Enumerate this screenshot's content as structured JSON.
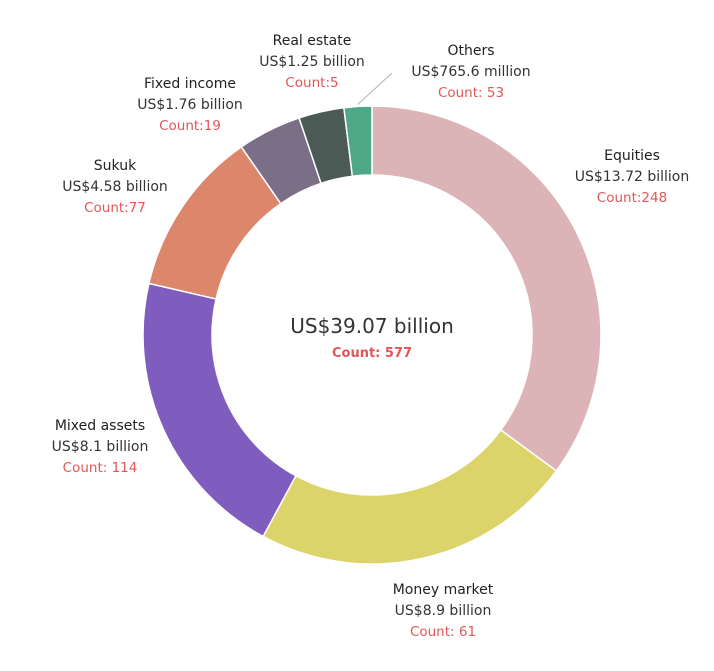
{
  "chart_data": {
    "type": "pie",
    "donut": true,
    "center": {
      "total": "US$39.07 billion",
      "count": "Count: 577"
    },
    "slices": [
      {
        "name": "Equities",
        "value": 13.72,
        "value_label": "US$13.72 billion",
        "count_label": "Count:248",
        "color": "#dcb4b8"
      },
      {
        "name": "Money market",
        "value": 8.9,
        "value_label": "US$8.9 billion",
        "count_label": "Count: 61",
        "color": "#dcd46b"
      },
      {
        "name": "Mixed assets",
        "value": 8.1,
        "value_label": "US$8.1 billion",
        "count_label": "Count: 114",
        "color": "#7f5dbe"
      },
      {
        "name": "Sukuk",
        "value": 4.58,
        "value_label": "US$4.58 billion",
        "count_label": "Count:77",
        "color": "#dc866c"
      },
      {
        "name": "Fixed income",
        "value": 1.76,
        "value_label": "US$1.76 billion",
        "count_label": "Count:19",
        "color": "#7a6f86"
      },
      {
        "name": "Real estate",
        "value": 1.25,
        "value_label": "US$1.25 billion",
        "count_label": "Count:5",
        "color": "#4b5a55"
      },
      {
        "name": "Others",
        "value": 0.7656,
        "value_label": "US$765.6 million",
        "count_label": "Count: 53",
        "color": "#4ea888"
      }
    ],
    "label_color_count": "#e15759"
  }
}
